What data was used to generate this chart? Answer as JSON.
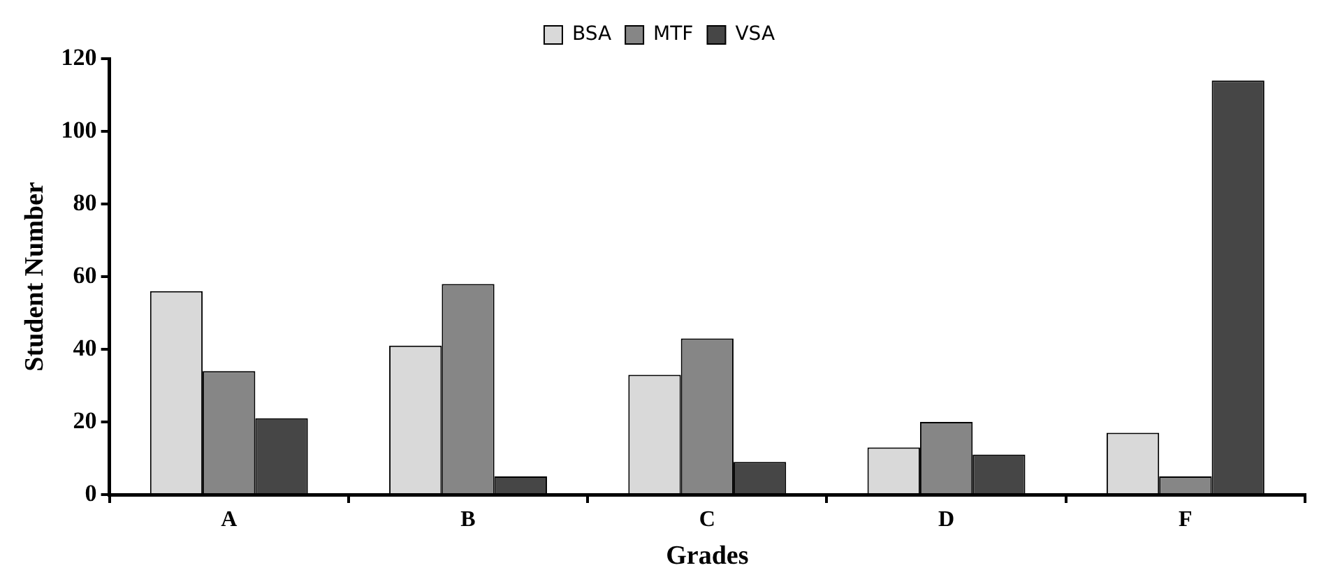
{
  "chart_data": {
    "type": "bar",
    "xlabel": "Grades",
    "ylabel": "Student Number",
    "categories": [
      "A",
      "B",
      "C",
      "D",
      "F"
    ],
    "series": [
      {
        "name": "BSA",
        "color": "#d9d9d9",
        "values": [
          56,
          41,
          33,
          13,
          17
        ]
      },
      {
        "name": "MTF",
        "color": "#868686",
        "values": [
          34,
          58,
          43,
          20,
          5
        ]
      },
      {
        "name": "VSA",
        "color": "#464646",
        "values": [
          21,
          5,
          9,
          11,
          114
        ]
      }
    ],
    "ylim": [
      0,
      120
    ],
    "yticks": [
      0,
      20,
      40,
      60,
      80,
      100,
      120
    ],
    "grid": false,
    "legend": "top"
  }
}
